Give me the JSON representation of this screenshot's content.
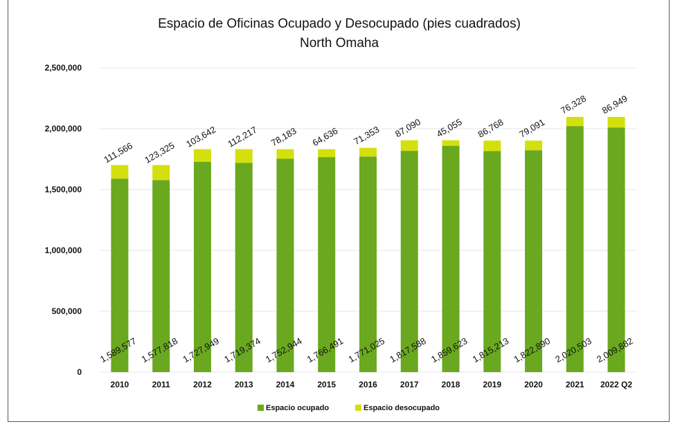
{
  "chart_data": {
    "type": "bar",
    "stacked": true,
    "title": "Espacio de Oficinas Ocupado y Desocupado (pies cuadrados)",
    "subtitle": "North Omaha",
    "categories": [
      "2010",
      "2011",
      "2012",
      "2013",
      "2014",
      "2015",
      "2016",
      "2017",
      "2018",
      "2019",
      "2020",
      "2021",
      "2022 Q2"
    ],
    "series": [
      {
        "name": "Espacio ocupado",
        "values": [
          1589577,
          1577818,
          1727949,
          1719374,
          1752944,
          1766491,
          1771025,
          1817588,
          1859623,
          1815213,
          1822890,
          2020503,
          2009882
        ],
        "labels": [
          "1,589,577",
          "1,577,818",
          "1,727,949",
          "1,719,374",
          "1,752,944",
          "1,766,491",
          "1,771,025",
          "1,817,588",
          "1,859,623",
          "1,815,213",
          "1,822,890",
          "2,020,503",
          "2,009,882"
        ],
        "color": "#6aa81f"
      },
      {
        "name": "Espacio desocupado",
        "values": [
          111566,
          123325,
          103642,
          112217,
          78183,
          64636,
          71353,
          87090,
          45055,
          86768,
          79091,
          76328,
          86949
        ],
        "labels": [
          "111,566",
          "123,325",
          "103,642",
          "112,217",
          "78,183",
          "64,636",
          "71,353",
          "87,090",
          "45,055",
          "86,768",
          "79,091",
          "76,328",
          "86,949"
        ],
        "color": "#d4e00e"
      }
    ],
    "ylim": [
      0,
      2500000
    ],
    "yticks": [
      0,
      500000,
      1000000,
      1500000,
      2000000,
      2500000
    ],
    "ytick_labels": [
      "0",
      "500,000",
      "1,000,000",
      "1,500,000",
      "2,000,000",
      "2,500,000"
    ],
    "grid": true,
    "legend_position": "bottom"
  }
}
